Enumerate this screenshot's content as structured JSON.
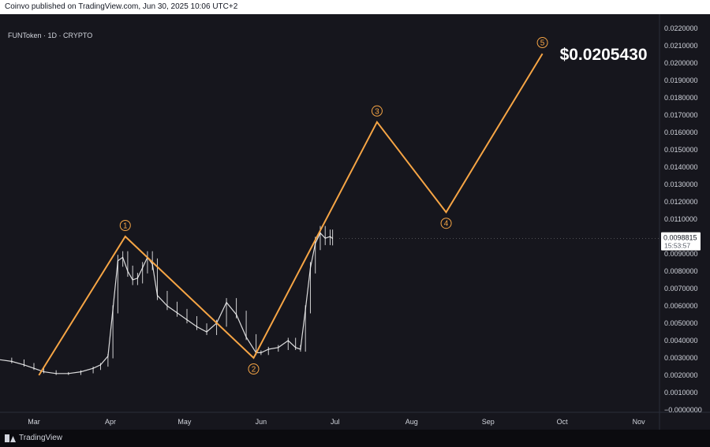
{
  "header": {
    "publisher_text": "Coinvo published on TradingView.com, Jun 30, 2025 10:06 UTC+2"
  },
  "symbol": {
    "label": "FUNToken · 1D · CRYPTO"
  },
  "footer": {
    "brand": "TradingView",
    "logo_icon": "tradingview-logo-icon"
  },
  "colors": {
    "background": "#16161d",
    "wave_line": "#f6a545",
    "candles": "#ffffff",
    "text": "#d1d4dc"
  },
  "chart_data": {
    "type": "line",
    "x_axis": {
      "ticks": [
        "Mar",
        "Apr",
        "May",
        "Jun",
        "Jul",
        "Aug",
        "Sep",
        "Oct",
        "Nov"
      ]
    },
    "y_axis": {
      "ylim": [
        -0.0005,
        0.0225
      ],
      "ticks": [
        0.022,
        0.021,
        0.02,
        0.019,
        0.018,
        0.017,
        0.016,
        0.015,
        0.014,
        0.013,
        0.012,
        0.011,
        0.01,
        0.009,
        0.008,
        0.007,
        0.006,
        0.005,
        0.004,
        0.003,
        0.002,
        0.001,
        0.0
      ],
      "tick_labels": [
        "0.0220000",
        "0.0210000",
        "0.0200000",
        "0.0190000",
        "0.0180000",
        "0.0170000",
        "0.0160000",
        "0.0150000",
        "0.0140000",
        "0.0130000",
        "0.0120000",
        "0.0110000",
        "0.0100000",
        "0.0090000",
        "0.0080000",
        "0.0070000",
        "0.0060000",
        "0.0050000",
        "0.0040000",
        "0.0030000",
        "0.0020000",
        "0.0010000",
        "−0.0000000"
      ]
    },
    "current_price": {
      "value": 0.0098815,
      "label": "0.0098815",
      "countdown": "15:53:57"
    },
    "target_label": "$0.0205430",
    "price_series": {
      "name": "FUNToken",
      "x": [
        "2025-02-15",
        "2025-02-20",
        "2025-02-25",
        "2025-03-01",
        "2025-03-05",
        "2025-03-10",
        "2025-03-15",
        "2025-03-20",
        "2025-03-25",
        "2025-03-28",
        "2025-03-31",
        "2025-04-02",
        "2025-04-04",
        "2025-04-06",
        "2025-04-08",
        "2025-04-10",
        "2025-04-12",
        "2025-04-14",
        "2025-04-16",
        "2025-04-18",
        "2025-04-20",
        "2025-04-24",
        "2025-04-28",
        "2025-05-02",
        "2025-05-06",
        "2025-05-10",
        "2025-05-14",
        "2025-05-18",
        "2025-05-22",
        "2025-05-26",
        "2025-05-30",
        "2025-06-01",
        "2025-06-04",
        "2025-06-08",
        "2025-06-12",
        "2025-06-15",
        "2025-06-17",
        "2025-06-19",
        "2025-06-21",
        "2025-06-23",
        "2025-06-25",
        "2025-06-27",
        "2025-06-29",
        "2025-06-30"
      ],
      "values": [
        0.0029,
        0.0028,
        0.0026,
        0.0024,
        0.0022,
        0.0021,
        0.0021,
        0.0022,
        0.0024,
        0.0026,
        0.0031,
        0.0058,
        0.0086,
        0.0088,
        0.008,
        0.0075,
        0.0076,
        0.0082,
        0.0088,
        0.0084,
        0.0066,
        0.006,
        0.0056,
        0.0052,
        0.0048,
        0.0045,
        0.005,
        0.0062,
        0.0055,
        0.0042,
        0.0033,
        0.0033,
        0.0035,
        0.0036,
        0.004,
        0.0036,
        0.0035,
        0.0058,
        0.0082,
        0.0096,
        0.0102,
        0.0099,
        0.01,
        0.0098815
      ]
    },
    "wave_path": {
      "x": [
        "2025-03-03",
        "2025-04-07",
        "2025-05-29",
        "2025-07-18",
        "2025-08-15",
        "2025-09-23"
      ],
      "values": [
        0.002,
        0.01,
        0.003,
        0.0166,
        0.0114,
        0.020543
      ]
    },
    "wave_labels": [
      {
        "label": "1",
        "x": "2025-04-07",
        "value": 0.01,
        "placement": "above"
      },
      {
        "label": "2",
        "x": "2025-05-29",
        "value": 0.003,
        "placement": "below"
      },
      {
        "label": "3",
        "x": "2025-07-18",
        "value": 0.0166,
        "placement": "above"
      },
      {
        "label": "4",
        "x": "2025-08-15",
        "value": 0.0114,
        "placement": "below"
      },
      {
        "label": "5",
        "x": "2025-09-23",
        "value": 0.020543,
        "placement": "above"
      }
    ]
  }
}
